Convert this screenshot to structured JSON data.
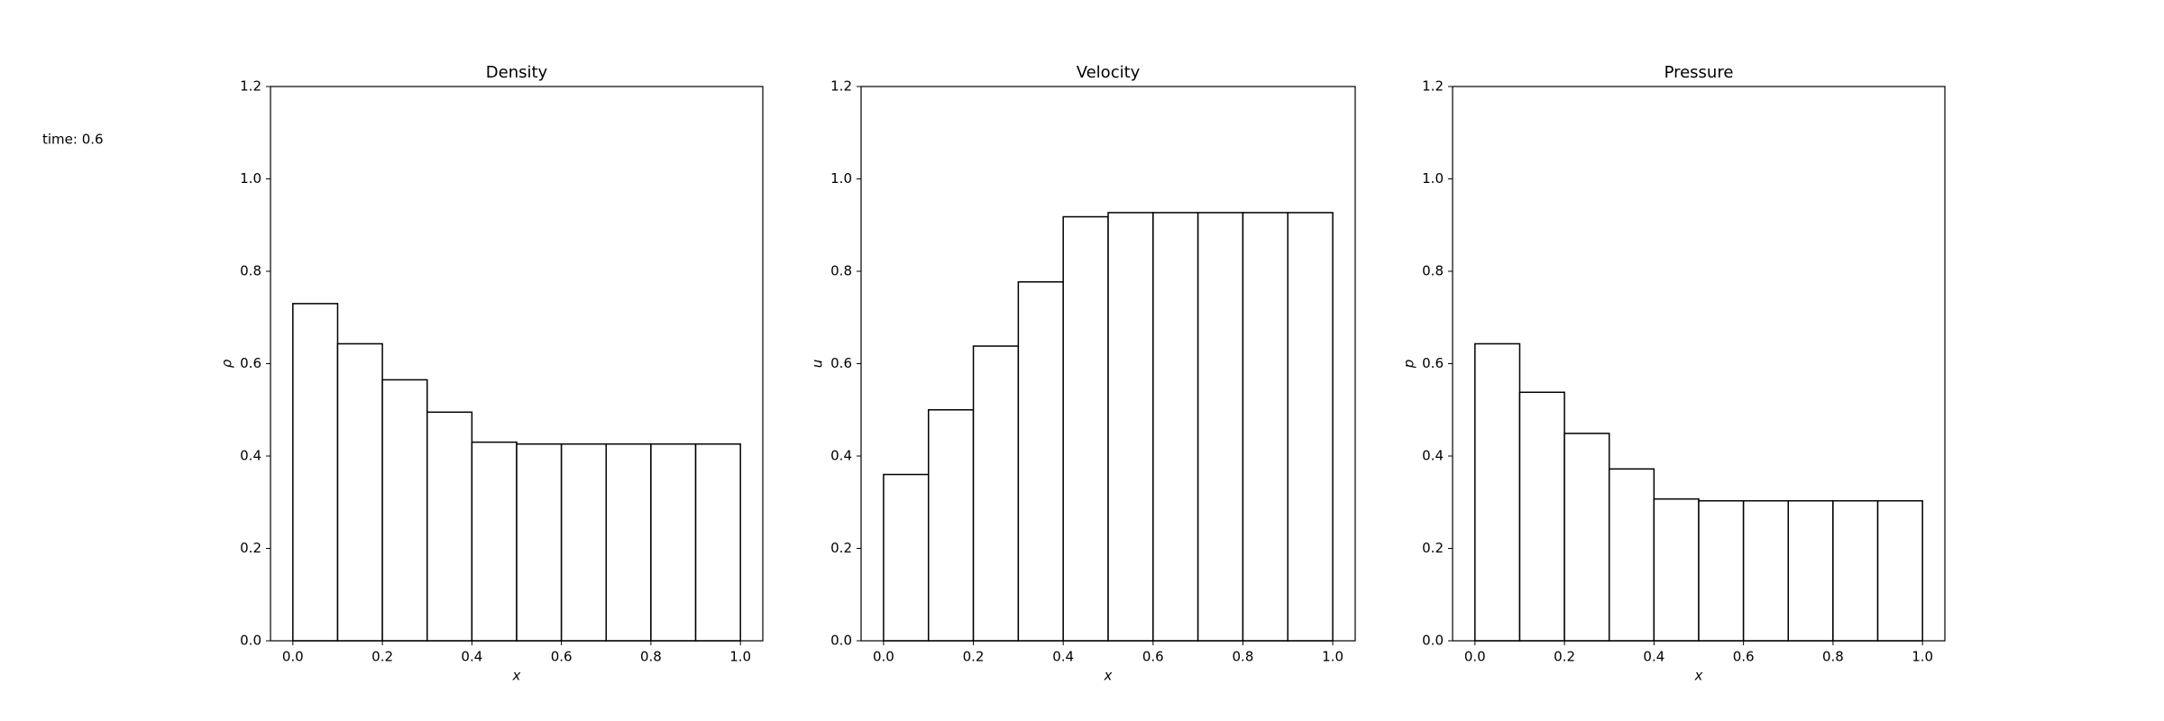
{
  "annotation": "time: 0.6",
  "chart_data": [
    {
      "type": "histogram",
      "title": "Density",
      "xlabel": "x",
      "ylabel": "ρ",
      "bins": [
        0,
        0.1,
        0.2,
        0.3,
        0.4,
        0.5,
        0.6,
        0.7,
        0.8,
        0.9,
        1
      ],
      "values": [
        0.73,
        0.643,
        0.565,
        0.495,
        0.43,
        0.426,
        0.426,
        0.426,
        0.426,
        0.426
      ],
      "color": "#ffffff",
      "edgecolor": "#000000",
      "xlim": [
        -0.05,
        1.05
      ],
      "ylim": [
        0,
        1.2
      ],
      "xticks": [
        {
          "value": 0,
          "label": "0.0"
        },
        0.2,
        0.4,
        0.6,
        0.8,
        {
          "value": 1,
          "label": "1.0"
        }
      ],
      "yticks": [
        {
          "value": 0,
          "label": "0.0"
        },
        0.2,
        0.4,
        0.6,
        0.8,
        {
          "value": 1,
          "label": "1.0"
        },
        1.2
      ]
    },
    {
      "type": "histogram",
      "title": "Velocity",
      "xlabel": "x",
      "ylabel": "u",
      "bins": [
        0,
        0.1,
        0.2,
        0.3,
        0.4,
        0.5,
        0.6,
        0.7,
        0.8,
        0.9,
        1
      ],
      "values": [
        0.36,
        0.5,
        0.638,
        0.777,
        0.918,
        0.927,
        0.927,
        0.927,
        0.927,
        0.927
      ],
      "color": "#ffffff",
      "edgecolor": "#000000",
      "xlim": [
        -0.05,
        1.05
      ],
      "ylim": [
        0,
        1.2
      ],
      "xticks": [
        {
          "value": 0,
          "label": "0.0"
        },
        0.2,
        0.4,
        0.6,
        0.8,
        {
          "value": 1,
          "label": "1.0"
        }
      ],
      "yticks": [
        {
          "value": 0,
          "label": "0.0"
        },
        0.2,
        0.4,
        0.6,
        0.8,
        {
          "value": 1,
          "label": "1.0"
        },
        1.2
      ]
    },
    {
      "type": "histogram",
      "title": "Pressure",
      "xlabel": "x",
      "ylabel": "p",
      "bins": [
        0,
        0.1,
        0.2,
        0.3,
        0.4,
        0.5,
        0.6,
        0.7,
        0.8,
        0.9,
        1
      ],
      "values": [
        0.643,
        0.538,
        0.449,
        0.372,
        0.307,
        0.303,
        0.303,
        0.303,
        0.303,
        0.303
      ],
      "color": "#ffffff",
      "edgecolor": "#000000",
      "xlim": [
        -0.05,
        1.05
      ],
      "ylim": [
        0,
        1.2
      ],
      "xticks": [
        {
          "value": 0,
          "label": "0.0"
        },
        0.2,
        0.4,
        0.6,
        0.8,
        {
          "value": 1,
          "label": "1.0"
        }
      ],
      "yticks": [
        {
          "value": 0,
          "label": "0.0"
        },
        0.2,
        0.4,
        0.6,
        0.8,
        {
          "value": 1,
          "label": "1.0"
        },
        1.2
      ]
    }
  ]
}
